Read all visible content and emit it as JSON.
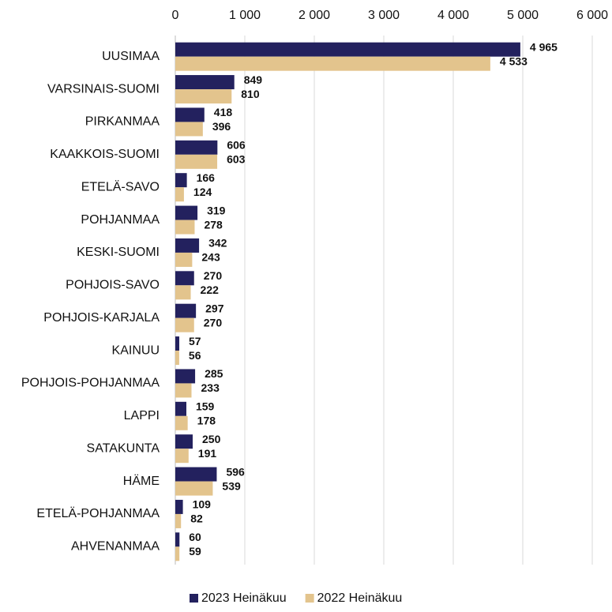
{
  "chart_data": {
    "type": "hbar",
    "categories": [
      "UUSIMAA",
      "VARSINAIS-SUOMI",
      "PIRKANMAA",
      "KAAKKOIS-SUOMI",
      "ETELÄ-SAVO",
      "POHJANMAA",
      "KESKI-SUOMI",
      "POHJOIS-SAVO",
      "POHJOIS-KARJALA",
      "KAINUU",
      "POHJOIS-POHJANMAA",
      "LAPPI",
      "SATAKUNTA",
      "HÄME",
      "ETELÄ-POHJANMAA",
      "AHVENANMAA"
    ],
    "series": [
      {
        "name": "2023 Heinäkuu",
        "color": "#23215e",
        "values": [
          4965,
          849,
          418,
          606,
          166,
          319,
          342,
          270,
          297,
          57,
          285,
          159,
          250,
          596,
          109,
          60
        ],
        "value_labels": [
          "4 965",
          "849",
          "418",
          "606",
          "166",
          "319",
          "342",
          "270",
          "297",
          "57",
          "285",
          "159",
          "250",
          "596",
          "109",
          "60"
        ]
      },
      {
        "name": "2022 Heinäkuu",
        "color": "#e3c48d",
        "values": [
          4533,
          810,
          396,
          603,
          124,
          278,
          243,
          222,
          270,
          56,
          233,
          178,
          191,
          539,
          82,
          59
        ],
        "value_labels": [
          "4 533",
          "810",
          "396",
          "603",
          "124",
          "278",
          "243",
          "222",
          "270",
          "56",
          "233",
          "178",
          "191",
          "539",
          "82",
          "59"
        ]
      }
    ],
    "xlim": [
      0,
      6000
    ],
    "xticks": [
      0,
      {
        "value": 1000,
        "label": "1 000"
      },
      {
        "value": 2000,
        "label": "2 000"
      },
      {
        "value": 3000,
        "label": "3 000"
      },
      {
        "value": 4000,
        "label": "4 000"
      },
      {
        "value": 5000,
        "label": "5 000"
      },
      {
        "value": 6000,
        "label": "6 000"
      }
    ],
    "grid": true,
    "legend": "bottom"
  }
}
